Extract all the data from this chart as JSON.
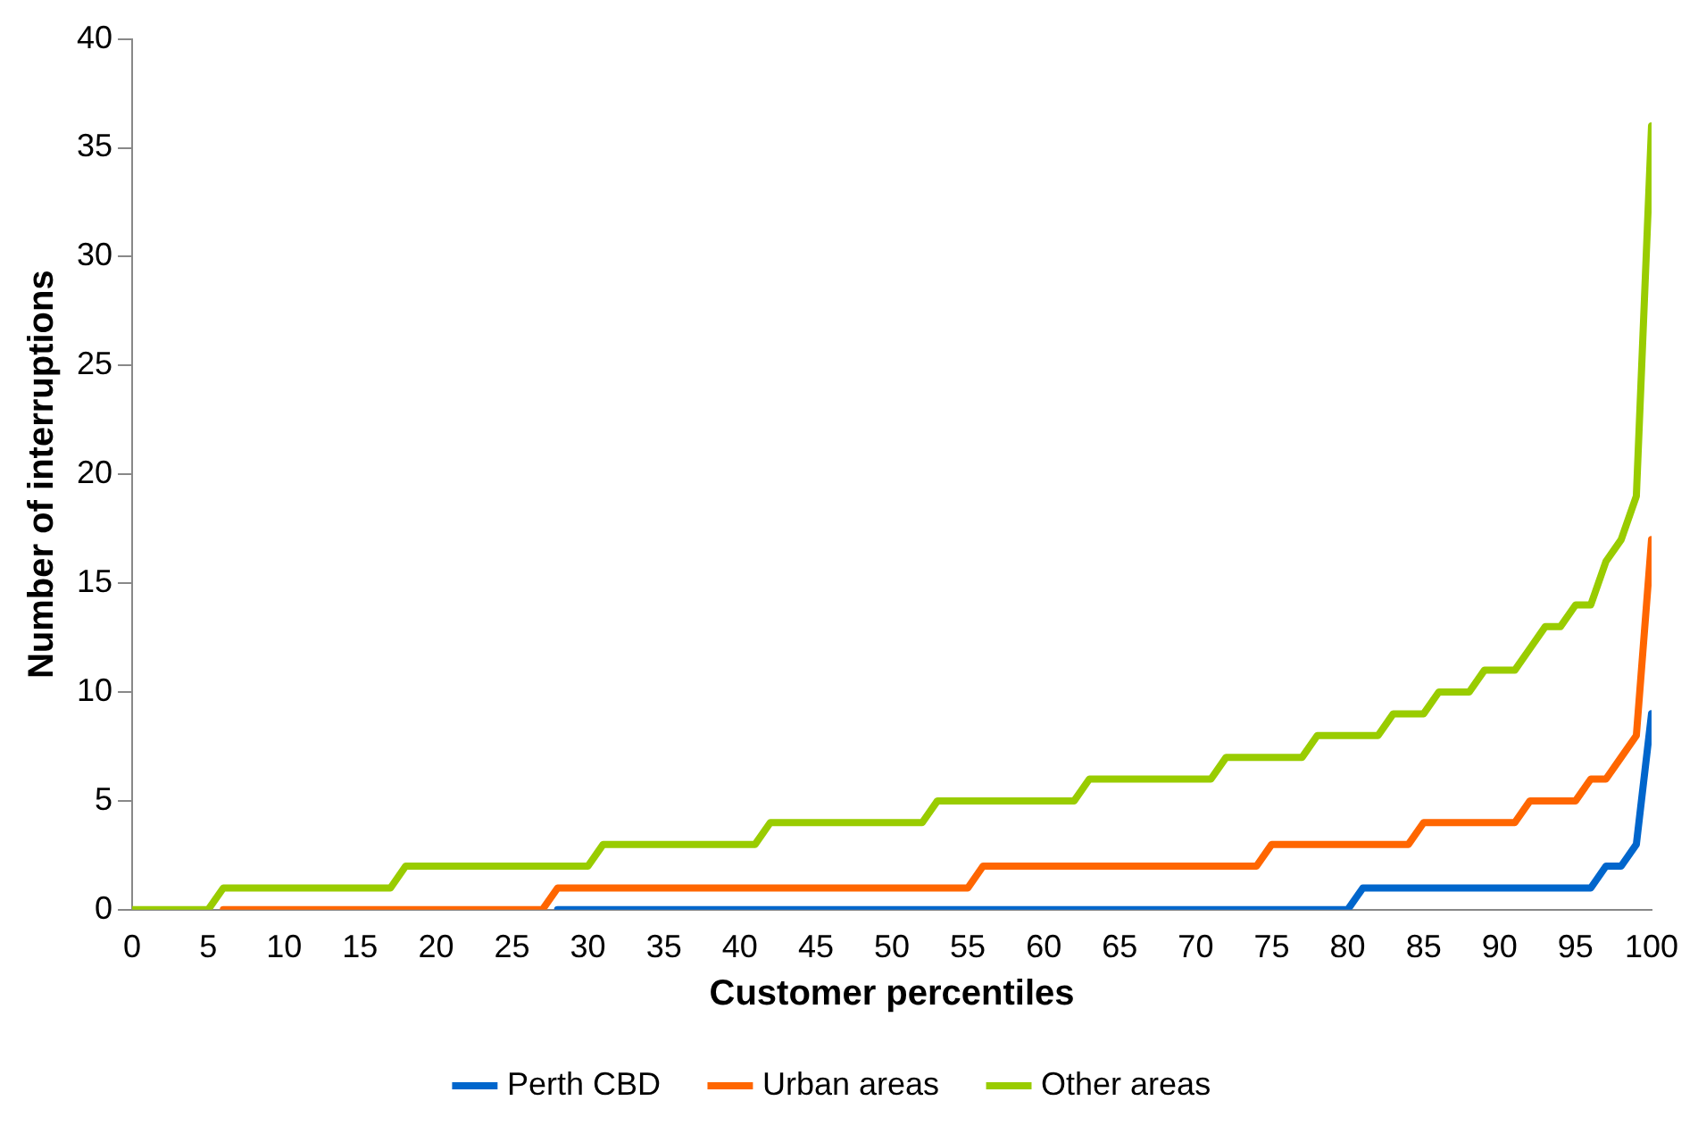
{
  "chart_data": {
    "type": "line",
    "xlabel": "Customer percentiles",
    "ylabel": "Number of interruptions",
    "x": [
      0,
      1,
      2,
      3,
      4,
      5,
      6,
      7,
      8,
      9,
      10,
      11,
      12,
      13,
      14,
      15,
      16,
      17,
      18,
      19,
      20,
      21,
      22,
      23,
      24,
      25,
      26,
      27,
      28,
      29,
      30,
      31,
      32,
      33,
      34,
      35,
      36,
      37,
      38,
      39,
      40,
      41,
      42,
      43,
      44,
      45,
      46,
      47,
      48,
      49,
      50,
      51,
      52,
      53,
      54,
      55,
      56,
      57,
      58,
      59,
      60,
      61,
      62,
      63,
      64,
      65,
      66,
      67,
      68,
      69,
      70,
      71,
      72,
      73,
      74,
      75,
      76,
      77,
      78,
      79,
      80,
      81,
      82,
      83,
      84,
      85,
      86,
      87,
      88,
      89,
      90,
      91,
      92,
      93,
      94,
      95,
      96,
      97,
      98,
      99,
      100
    ],
    "xlim": [
      0,
      100
    ],
    "xticks": [
      0,
      5,
      10,
      15,
      20,
      25,
      30,
      35,
      40,
      45,
      50,
      55,
      60,
      65,
      70,
      75,
      80,
      85,
      90,
      95,
      100
    ],
    "ylim": [
      0,
      40
    ],
    "yticks": [
      0,
      5,
      10,
      15,
      20,
      25,
      30,
      35,
      40
    ],
    "grid": false,
    "legend": "bottom",
    "marker": "none",
    "line_style": "solid",
    "series": [
      {
        "name": "Perth CBD",
        "color": "#0066cc",
        "values": [
          null,
          null,
          null,
          null,
          null,
          null,
          null,
          null,
          null,
          null,
          null,
          null,
          null,
          null,
          null,
          null,
          null,
          null,
          null,
          null,
          null,
          null,
          null,
          null,
          null,
          null,
          null,
          null,
          0,
          0,
          0,
          0,
          0,
          0,
          0,
          0,
          0,
          0,
          0,
          0,
          0,
          0,
          0,
          0,
          0,
          0,
          0,
          0,
          0,
          0,
          0,
          0,
          0,
          0,
          0,
          0,
          0,
          0,
          0,
          0,
          0,
          0,
          0,
          0,
          0,
          0,
          0,
          0,
          0,
          0,
          0,
          0,
          0,
          0,
          0,
          0,
          0,
          0,
          0,
          0,
          0,
          1,
          1,
          1,
          1,
          1,
          1,
          1,
          1,
          1,
          1,
          1,
          1,
          1,
          1,
          1,
          1,
          2,
          2,
          3,
          9
        ]
      },
      {
        "name": "Urban areas",
        "color": "#ff6600",
        "values": [
          null,
          null,
          null,
          null,
          null,
          null,
          0,
          0,
          0,
          0,
          0,
          0,
          0,
          0,
          0,
          0,
          0,
          0,
          0,
          0,
          0,
          0,
          0,
          0,
          0,
          0,
          0,
          0,
          1,
          1,
          1,
          1,
          1,
          1,
          1,
          1,
          1,
          1,
          1,
          1,
          1,
          1,
          1,
          1,
          1,
          1,
          1,
          1,
          1,
          1,
          1,
          1,
          1,
          1,
          1,
          1,
          2,
          2,
          2,
          2,
          2,
          2,
          2,
          2,
          2,
          2,
          2,
          2,
          2,
          2,
          2,
          2,
          2,
          2,
          2,
          3,
          3,
          3,
          3,
          3,
          3,
          3,
          3,
          3,
          3,
          4,
          4,
          4,
          4,
          4,
          4,
          4,
          5,
          5,
          5,
          5,
          6,
          6,
          7,
          8,
          17
        ]
      },
      {
        "name": "Other areas",
        "color": "#99cc00",
        "values": [
          0,
          0,
          0,
          0,
          0,
          0,
          1,
          1,
          1,
          1,
          1,
          1,
          1,
          1,
          1,
          1,
          1,
          1,
          2,
          2,
          2,
          2,
          2,
          2,
          2,
          2,
          2,
          2,
          2,
          2,
          2,
          3,
          3,
          3,
          3,
          3,
          3,
          3,
          3,
          3,
          3,
          3,
          4,
          4,
          4,
          4,
          4,
          4,
          4,
          4,
          4,
          4,
          4,
          5,
          5,
          5,
          5,
          5,
          5,
          5,
          5,
          5,
          5,
          6,
          6,
          6,
          6,
          6,
          6,
          6,
          6,
          6,
          7,
          7,
          7,
          7,
          7,
          7,
          8,
          8,
          8,
          8,
          8,
          9,
          9,
          9,
          10,
          10,
          10,
          11,
          11,
          11,
          12,
          13,
          13,
          14,
          14,
          16,
          17,
          19,
          36
        ]
      }
    ]
  }
}
